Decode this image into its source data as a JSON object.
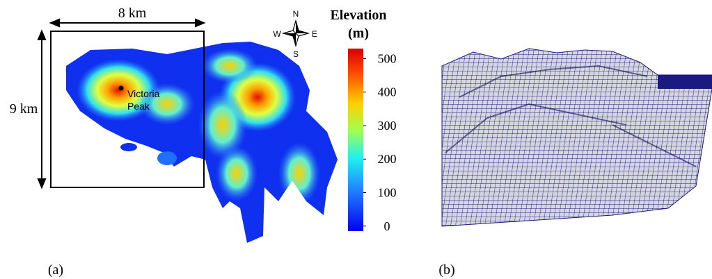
{
  "panel_a": {
    "width_label": "8 km",
    "height_label": "9 km",
    "compass": {
      "n": "N",
      "s": "S",
      "w": "W",
      "e": "E"
    },
    "landmark": [
      "Victoria",
      "Peak"
    ],
    "colorbar": {
      "title": [
        "Elevation",
        "(m)"
      ],
      "lim": [
        -15,
        530
      ],
      "ticks": [
        0,
        100,
        200,
        300,
        400,
        500
      ]
    },
    "caption": "(a)"
  },
  "panel_b": {
    "caption": "(b)"
  }
}
